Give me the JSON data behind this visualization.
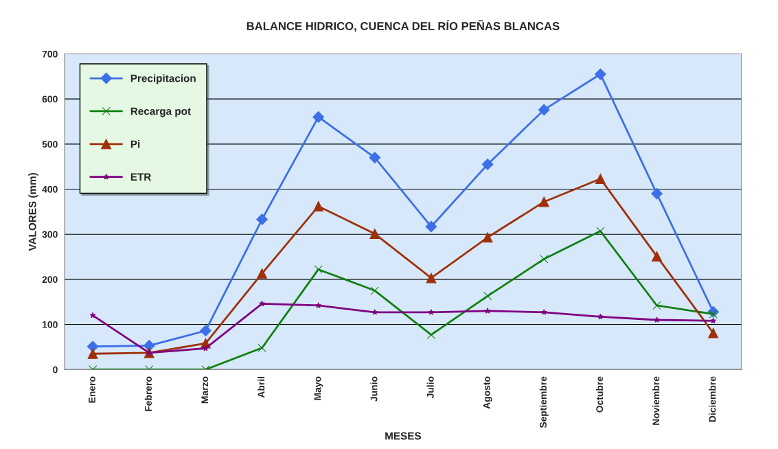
{
  "chart_data": {
    "type": "line",
    "title": "BALANCE HIDRICO, CUENCA DEL RÍO PEÑAS BLANCAS",
    "xlabel": "MESES",
    "ylabel": "VALORES (mm)",
    "categories": [
      "Enero",
      "Febrero",
      "Marzo",
      "Abril",
      "Mayo",
      "Junio",
      "Julio",
      "Agosto",
      "Septiembre",
      "Octubre",
      "Noviembre",
      "Diciembre"
    ],
    "series": [
      {
        "name": "Precipitacion",
        "color": "#3d6fe8",
        "marker": "diamond",
        "values": [
          51,
          53,
          86,
          333,
          560,
          470,
          317,
          455,
          576,
          655,
          390,
          128
        ]
      },
      {
        "name": "Recarga pot",
        "color": "#108010",
        "marker": "cross",
        "values": [
          0,
          0,
          0,
          48,
          222,
          175,
          77,
          163,
          245,
          307,
          142,
          123
        ]
      },
      {
        "name": "Pi",
        "color": "#a0300a",
        "marker": "triangle",
        "values": [
          35,
          37,
          58,
          213,
          362,
          301,
          203,
          293,
          372,
          423,
          251,
          81
        ]
      },
      {
        "name": "ETR",
        "color": "#800080",
        "marker": "star",
        "values": [
          120,
          37,
          47,
          146,
          142,
          127,
          127,
          130,
          127,
          117,
          110,
          108
        ]
      }
    ],
    "ylim": [
      0,
      700
    ],
    "yticks": [
      0,
      100,
      200,
      300,
      400,
      500,
      600,
      700
    ],
    "grid": "y",
    "legend": "top left",
    "line_style": "solid"
  }
}
